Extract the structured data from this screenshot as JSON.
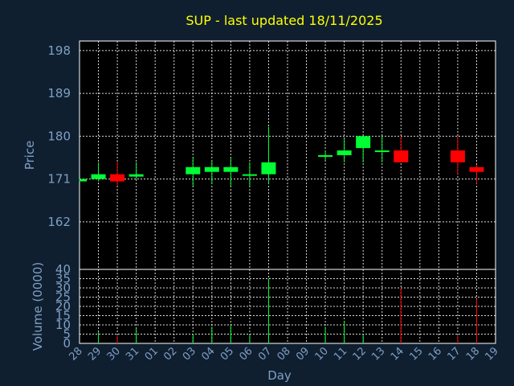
{
  "chart_data": {
    "type": "candlestick",
    "title": "SUP - last updated 18/11/2025",
    "xlabel": "Day",
    "price_panel": {
      "ylabel": "Price",
      "ylim": [
        152,
        200
      ],
      "yticks": [
        162,
        171,
        180,
        189,
        198
      ]
    },
    "volume_panel": {
      "ylabel": "Volume (0000)",
      "ylim": [
        0,
        40
      ],
      "yticks": [
        0,
        5,
        10,
        15,
        20,
        25,
        30,
        35,
        40
      ]
    },
    "x_tick_labels": [
      "28",
      "29",
      "30",
      "31",
      "01",
      "02",
      "03",
      "04",
      "05",
      "06",
      "07",
      "08",
      "09",
      "10",
      "11",
      "12",
      "13",
      "14",
      "15",
      "16",
      "17",
      "18",
      "19"
    ],
    "grid": true,
    "colors": {
      "up": "#00ff33",
      "down": "#ff0000",
      "background": "#0f1f30",
      "panel": "#000000",
      "title": "#ffff00",
      "axis_text": "#7f9fc4"
    },
    "candles": [
      {
        "day": "28",
        "open": 170.5,
        "high": 171.0,
        "low": 170.5,
        "close": 171.0,
        "volume": 0
      },
      {
        "day": "29",
        "open": 171.0,
        "high": 174.5,
        "low": 170.5,
        "close": 172.0,
        "volume": 6
      },
      {
        "day": "30",
        "open": 172.0,
        "high": 174.5,
        "low": 169.5,
        "close": 170.5,
        "volume": 4
      },
      {
        "day": "31",
        "open": 171.5,
        "high": 174.5,
        "low": 171.0,
        "close": 172.0,
        "volume": 8
      },
      {
        "day": "03",
        "open": 172.0,
        "high": 175.5,
        "low": 169.5,
        "close": 173.5,
        "volume": 5
      },
      {
        "day": "04",
        "open": 172.5,
        "high": 175.0,
        "low": 170.0,
        "close": 173.5,
        "volume": 9
      },
      {
        "day": "05",
        "open": 172.5,
        "high": 175.5,
        "low": 169.5,
        "close": 173.5,
        "volume": 10
      },
      {
        "day": "06",
        "open": 172.0,
        "high": 174.5,
        "low": 169.5,
        "close": 172.0,
        "volume": 5
      },
      {
        "day": "07",
        "open": 172.0,
        "high": 182.0,
        "low": 170.0,
        "close": 174.5,
        "volume": 35
      },
      {
        "day": "10",
        "open": 176.0,
        "high": 177.0,
        "low": 175.0,
        "close": 176.0,
        "volume": 9
      },
      {
        "day": "11",
        "open": 176.0,
        "high": 179.5,
        "low": 174.5,
        "close": 177.0,
        "volume": 12
      },
      {
        "day": "12",
        "open": 177.5,
        "high": 180.0,
        "low": 174.5,
        "close": 180.0,
        "volume": 5
      },
      {
        "day": "13",
        "open": 177.0,
        "high": 180.0,
        "low": 174.5,
        "close": 177.0,
        "volume": 0
      },
      {
        "day": "14",
        "open": 177.0,
        "high": 180.0,
        "low": 174.5,
        "close": 174.5,
        "volume": 30
      },
      {
        "day": "17",
        "open": 177.0,
        "high": 180.0,
        "low": 172.0,
        "close": 174.5,
        "volume": 4
      },
      {
        "day": "18",
        "open": 173.5,
        "high": 174.0,
        "low": 170.0,
        "close": 172.5,
        "volume": 24
      }
    ]
  }
}
